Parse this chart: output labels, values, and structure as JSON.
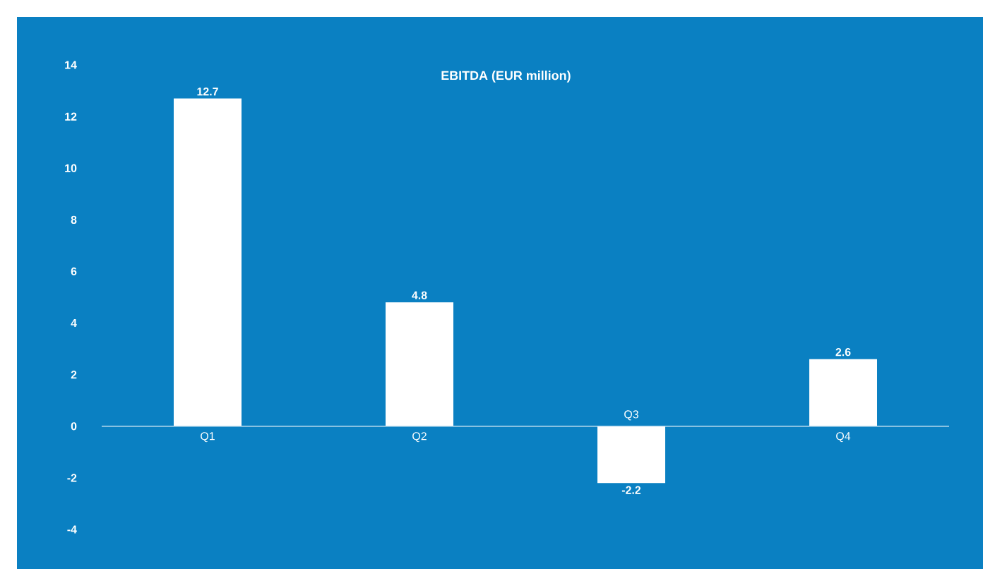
{
  "chart_data": {
    "type": "bar",
    "title": "EBITDA (EUR million)",
    "categories": [
      "Q1",
      "Q2",
      "Q3",
      "Q4"
    ],
    "values": [
      12.7,
      4.8,
      -2.2,
      2.6
    ],
    "color": "#ffffff",
    "ylim": [
      -4,
      14
    ],
    "yticks": [
      -4,
      -2,
      0,
      2,
      4,
      6,
      8,
      10,
      12,
      14
    ],
    "data_labels": true
  }
}
